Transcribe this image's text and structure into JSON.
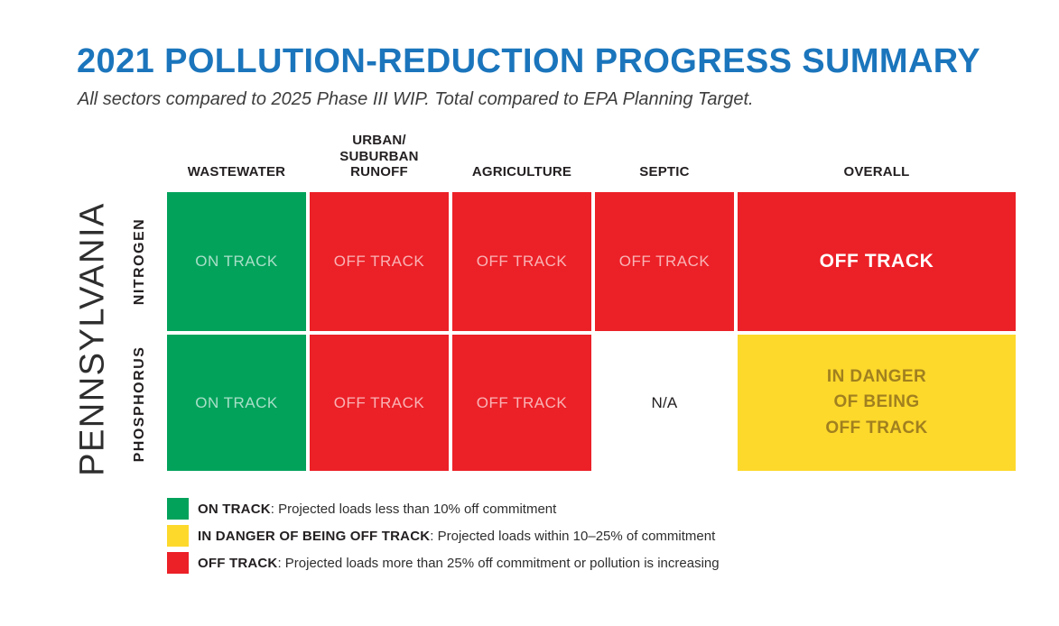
{
  "page": {
    "title": "2021 POLLUTION-REDUCTION PROGRESS SUMMARY",
    "subtitle": "All sectors compared to 2025 Phase III WIP. Total compared to EPA Planning Target."
  },
  "colors": {
    "title_blue": "#1b75bc",
    "green": "#02a25b",
    "red": "#ec2027",
    "yellow": "#fdd92c",
    "gold_text": "#a1801f",
    "white": "#ffffff"
  },
  "status_colors": {
    "on-track": "#02a25b",
    "off-track": "#ec2027",
    "off-track-overall": "#ec2027",
    "in-danger": "#fdd92c",
    "na": "#ffffff"
  },
  "table": {
    "state_label": "PENNSYLVANIA",
    "column_headers": {
      "wastewater": "WASTEWATER",
      "urban": "URBAN/\nSUBURBAN\nRUNOFF",
      "agriculture": "AGRICULTURE",
      "septic": "SEPTIC",
      "overall": "OVERALL"
    },
    "rows": [
      {
        "label": "NITROGEN",
        "cells": [
          {
            "text": "ON TRACK",
            "status": "on-track"
          },
          {
            "text": "OFF TRACK",
            "status": "off-track"
          },
          {
            "text": "OFF TRACK",
            "status": "off-track"
          },
          {
            "text": "OFF TRACK",
            "status": "off-track"
          },
          {
            "text": "OFF TRACK",
            "status": "off-track-overall"
          }
        ]
      },
      {
        "label": "PHOSPHORUS",
        "cells": [
          {
            "text": "ON TRACK",
            "status": "on-track"
          },
          {
            "text": "OFF TRACK",
            "status": "off-track"
          },
          {
            "text": "OFF TRACK",
            "status": "off-track"
          },
          {
            "text": "N/A",
            "status": "na"
          },
          {
            "text": "IN DANGER\nOF BEING\nOFF TRACK",
            "status": "in-danger"
          }
        ]
      }
    ]
  },
  "legend": {
    "items": [
      {
        "status": "on-track",
        "label": "ON TRACK",
        "description": ": Projected loads less than 10% off commitment"
      },
      {
        "status": "in-danger",
        "label": "IN DANGER OF BEING OFF TRACK",
        "description": ": Projected loads within 10–25% of commitment"
      },
      {
        "status": "off-track",
        "label": "OFF TRACK",
        "description": ": Projected loads more than 25% off commitment or pollution is increasing"
      }
    ]
  },
  "chart_data": {
    "type": "table",
    "title": "2021 POLLUTION-REDUCTION PROGRESS SUMMARY",
    "subtitle": "All sectors compared to 2025 Phase III WIP. Total compared to EPA Planning Target.",
    "region": "PENNSYLVANIA",
    "columns": [
      "WASTEWATER",
      "URBAN/SUBURBAN RUNOFF",
      "AGRICULTURE",
      "SEPTIC",
      "OVERALL"
    ],
    "rows": [
      "NITROGEN",
      "PHOSPHORUS"
    ],
    "values": [
      [
        "ON TRACK",
        "OFF TRACK",
        "OFF TRACK",
        "OFF TRACK",
        "OFF TRACK"
      ],
      [
        "ON TRACK",
        "OFF TRACK",
        "OFF TRACK",
        "N/A",
        "IN DANGER OF BEING OFF TRACK"
      ]
    ],
    "legend": [
      "ON TRACK: Projected loads less than 10% off commitment",
      "IN DANGER OF BEING OFF TRACK: Projected loads within 10–25% of commitment",
      "OFF TRACK: Projected loads more than 25% off commitment or pollution is increasing"
    ]
  }
}
